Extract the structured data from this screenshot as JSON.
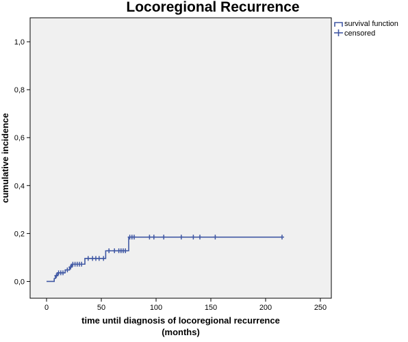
{
  "chart_data": {
    "type": "line",
    "title": "Locoregional Recurrence",
    "xlabel_lines": [
      "time until diagnosis of locoregional recurrence",
      "(months)"
    ],
    "ylabel": "cumulative incidence",
    "xlim": [
      -15,
      260
    ],
    "ylim": [
      -0.07,
      1.1
    ],
    "x_ticks": [
      0,
      50,
      100,
      150,
      200,
      250
    ],
    "x_tick_labels": [
      "0",
      "50",
      "100",
      "150",
      "200",
      "250"
    ],
    "y_ticks": [
      0.0,
      0.2,
      0.4,
      0.6,
      0.8,
      1.0
    ],
    "y_tick_labels": [
      "0,0",
      "0,2",
      "0,4",
      "0,6",
      "0,8",
      "1,0"
    ],
    "grid": false,
    "legend_position": "top-right",
    "series": [
      {
        "name": "survival function",
        "color": "#3f57a3",
        "step_points": [
          [
            0,
            0.0
          ],
          [
            7,
            0.0
          ],
          [
            7,
            0.012
          ],
          [
            8,
            0.012
          ],
          [
            8,
            0.024
          ],
          [
            10,
            0.024
          ],
          [
            10,
            0.036
          ],
          [
            17,
            0.036
          ],
          [
            17,
            0.048
          ],
          [
            21,
            0.048
          ],
          [
            21,
            0.06
          ],
          [
            23,
            0.06
          ],
          [
            23,
            0.072
          ],
          [
            35,
            0.072
          ],
          [
            35,
            0.096
          ],
          [
            54,
            0.096
          ],
          [
            54,
            0.128
          ],
          [
            75,
            0.128
          ],
          [
            75,
            0.185
          ],
          [
            215,
            0.185
          ]
        ]
      },
      {
        "name": "censored",
        "color": "#3f57a3",
        "points": [
          [
            9,
            0.024
          ],
          [
            11,
            0.036
          ],
          [
            13,
            0.036
          ],
          [
            15,
            0.036
          ],
          [
            19,
            0.048
          ],
          [
            22,
            0.06
          ],
          [
            24,
            0.072
          ],
          [
            26,
            0.072
          ],
          [
            28,
            0.072
          ],
          [
            30,
            0.072
          ],
          [
            32,
            0.072
          ],
          [
            38,
            0.096
          ],
          [
            42,
            0.096
          ],
          [
            45,
            0.096
          ],
          [
            48,
            0.096
          ],
          [
            52,
            0.096
          ],
          [
            57,
            0.128
          ],
          [
            62,
            0.128
          ],
          [
            66,
            0.128
          ],
          [
            68,
            0.128
          ],
          [
            70,
            0.128
          ],
          [
            72,
            0.128
          ],
          [
            76,
            0.185
          ],
          [
            78,
            0.185
          ],
          [
            80,
            0.185
          ],
          [
            94,
            0.185
          ],
          [
            98,
            0.185
          ],
          [
            107,
            0.185
          ],
          [
            123,
            0.185
          ],
          [
            134,
            0.185
          ],
          [
            140,
            0.185
          ],
          [
            154,
            0.185
          ],
          [
            215,
            0.185
          ]
        ]
      }
    ]
  }
}
